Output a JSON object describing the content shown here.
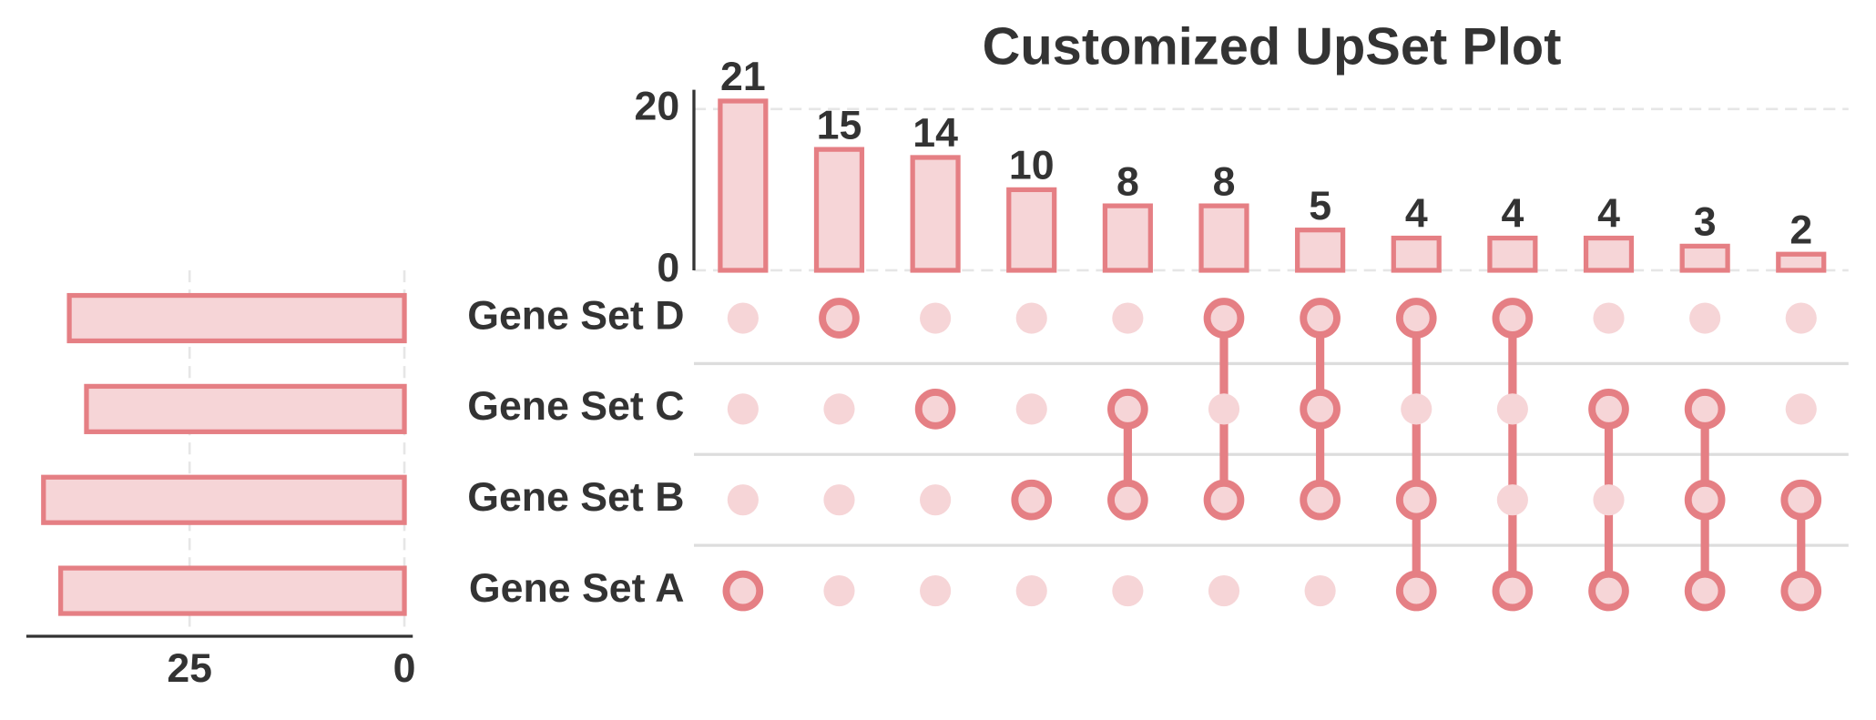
{
  "chart_data": {
    "type": "upset",
    "title": "Customized UpSet Plot",
    "sets": [
      "Gene Set D",
      "Gene Set C",
      "Gene Set B",
      "Gene Set A"
    ],
    "set_sizes": [
      39,
      37,
      42,
      40
    ],
    "xlim": [
      0,
      44
    ],
    "xticks": [
      0,
      25
    ],
    "values": [
      21,
      15,
      14,
      10,
      8,
      8,
      5,
      4,
      4,
      4,
      3,
      2
    ],
    "membership": [
      [
        false,
        false,
        false,
        true
      ],
      [
        true,
        false,
        false,
        false
      ],
      [
        false,
        true,
        false,
        false
      ],
      [
        false,
        false,
        true,
        false
      ],
      [
        false,
        true,
        true,
        false
      ],
      [
        true,
        false,
        true,
        false
      ],
      [
        true,
        true,
        true,
        false
      ],
      [
        true,
        false,
        true,
        true
      ],
      [
        true,
        false,
        false,
        true
      ],
      [
        false,
        true,
        false,
        true
      ],
      [
        false,
        true,
        true,
        true
      ],
      [
        false,
        false,
        true,
        true
      ]
    ],
    "ylim": [
      0,
      22.4
    ],
    "yticks": [
      0,
      20
    ],
    "grid": true,
    "color": "#e57f84",
    "fill_color": "#f6d5d7"
  }
}
